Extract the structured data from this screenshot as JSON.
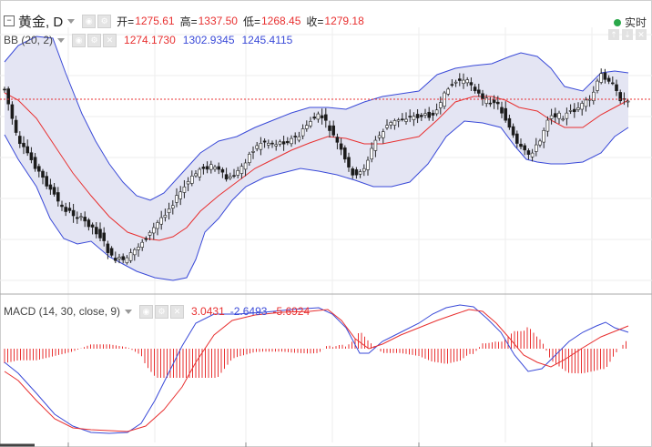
{
  "header": {
    "collapse_glyph": "⊟",
    "symbol": "黄金, D",
    "open_label": "开=",
    "open": "1275.61",
    "high_label": "高=",
    "high": "1337.50",
    "low_label": "低=",
    "low": "1268.45",
    "close_label": "收=",
    "close": "1279.18",
    "realtime_label": "实时"
  },
  "bb": {
    "name": "BB (20, 2)",
    "basis": "1274.1730",
    "upper": "1302.9345",
    "lower": "1245.4115"
  },
  "macd": {
    "name": "MACD (14, 30, close, 9)",
    "hist": "3.0431",
    "macd": "-2.6493",
    "signal": "-5.6924"
  },
  "colors": {
    "up": "#ffffff",
    "down": "#1a1a1a",
    "candle_outline": "#222222",
    "up_close_line": "#e83030",
    "bb_band": "#3a4ad8",
    "bb_fill": "#e4e5f3",
    "bb_basis": "#e83030",
    "macd_line": "#3a4ad8",
    "signal_line": "#e83030",
    "hist": "#e83030",
    "value_red": "#e83030",
    "value_blue": "#3a4ad8",
    "live_dot": "#2aa84a"
  },
  "icons": [
    "collapse-icon",
    "eye-icon",
    "gear-icon",
    "close-icon",
    "chevron-down-icon",
    "live-dot-icon"
  ]
}
